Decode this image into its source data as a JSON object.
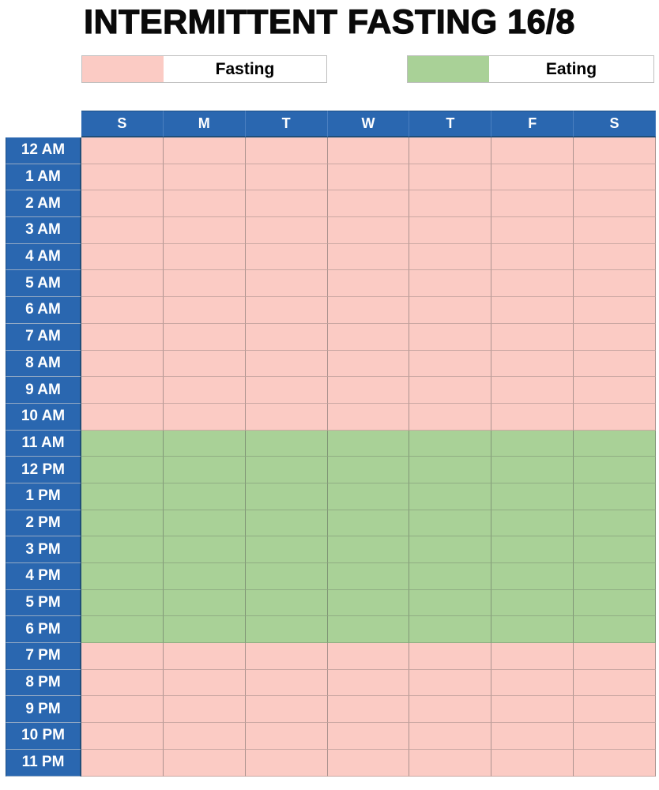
{
  "title": "INTERMITTENT FASTING 16/8",
  "legend": {
    "fasting_label": "Fasting",
    "eating_label": "Eating"
  },
  "colors": {
    "fasting_pink": "#FBCBC4",
    "eating_green": "#A9D197",
    "header_blue": "#2A67B0",
    "dark_navy_border": "#1F4E79",
    "legend_border": "#BFBFBF",
    "title_color": "#0A0A0A",
    "header_text": "#FFFFFF"
  },
  "schedule": {
    "day_headers": [
      "S",
      "M",
      "T",
      "W",
      "T",
      "F",
      "S"
    ],
    "hours": [
      {
        "label": "12 AM",
        "state": "fasting"
      },
      {
        "label": "1 AM",
        "state": "fasting"
      },
      {
        "label": "2 AM",
        "state": "fasting"
      },
      {
        "label": "3 AM",
        "state": "fasting"
      },
      {
        "label": "4 AM",
        "state": "fasting"
      },
      {
        "label": "5 AM",
        "state": "fasting"
      },
      {
        "label": "6 AM",
        "state": "fasting"
      },
      {
        "label": "7 AM",
        "state": "fasting"
      },
      {
        "label": "8 AM",
        "state": "fasting"
      },
      {
        "label": "9 AM",
        "state": "fasting"
      },
      {
        "label": "10 AM",
        "state": "fasting"
      },
      {
        "label": "11 AM",
        "state": "eating"
      },
      {
        "label": "12 PM",
        "state": "eating"
      },
      {
        "label": "1 PM",
        "state": "eating"
      },
      {
        "label": "2 PM",
        "state": "eating"
      },
      {
        "label": "3 PM",
        "state": "eating"
      },
      {
        "label": "4 PM",
        "state": "eating"
      },
      {
        "label": "5 PM",
        "state": "eating"
      },
      {
        "label": "6 PM",
        "state": "eating"
      },
      {
        "label": "7 PM",
        "state": "fasting"
      },
      {
        "label": "8 PM",
        "state": "fasting"
      },
      {
        "label": "9 PM",
        "state": "fasting"
      },
      {
        "label": "10 PM",
        "state": "fasting"
      },
      {
        "label": "11 PM",
        "state": "fasting"
      }
    ]
  },
  "chart_data": {
    "type": "heatmap",
    "title": "INTERMITTENT FASTING 16/8",
    "columns": [
      "S",
      "M",
      "T",
      "W",
      "T",
      "F",
      "S"
    ],
    "rows": [
      "12 AM",
      "1 AM",
      "2 AM",
      "3 AM",
      "4 AM",
      "5 AM",
      "6 AM",
      "7 AM",
      "8 AM",
      "9 AM",
      "10 AM",
      "11 AM",
      "12 PM",
      "1 PM",
      "2 PM",
      "3 PM",
      "4 PM",
      "5 PM",
      "6 PM",
      "7 PM",
      "8 PM",
      "9 PM",
      "10 PM",
      "11 PM"
    ],
    "row_states": [
      "fasting",
      "fasting",
      "fasting",
      "fasting",
      "fasting",
      "fasting",
      "fasting",
      "fasting",
      "fasting",
      "fasting",
      "fasting",
      "eating",
      "eating",
      "eating",
      "eating",
      "eating",
      "eating",
      "eating",
      "eating",
      "fasting",
      "fasting",
      "fasting",
      "fasting",
      "fasting"
    ],
    "same_state_for_all_columns": true,
    "legend": [
      {
        "label": "Fasting",
        "color": "#FBCBC4",
        "hours_per_day": 16
      },
      {
        "label": "Eating",
        "color": "#A9D197",
        "hours_per_day": 8
      }
    ],
    "eating_window_rows": "11 AM through 6 PM",
    "fasting_window_rows": "7 PM through 10 AM",
    "legend_position": "top"
  }
}
